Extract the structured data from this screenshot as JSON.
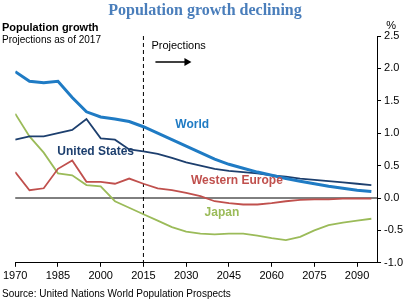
{
  "chart_data": {
    "type": "line",
    "title": "Population growth declining",
    "subtitle": [
      "Population growth",
      "Projections as of 2017"
    ],
    "y_label": "%",
    "source": "Source: United Nations World Population Prospects",
    "x": [
      1970,
      1975,
      1980,
      1985,
      1990,
      1995,
      2000,
      2005,
      2010,
      2015,
      2020,
      2025,
      2030,
      2035,
      2040,
      2045,
      2050,
      2055,
      2060,
      2065,
      2070,
      2075,
      2080,
      2085,
      2090,
      2095
    ],
    "series": [
      {
        "name": "World",
        "color": "#1f7bc4",
        "values": [
          1.95,
          1.8,
          1.78,
          1.8,
          1.55,
          1.33,
          1.25,
          1.22,
          1.18,
          1.1,
          1.0,
          0.9,
          0.8,
          0.7,
          0.6,
          0.52,
          0.46,
          0.4,
          0.35,
          0.3,
          0.26,
          0.22,
          0.18,
          0.15,
          0.12,
          0.1
        ]
      },
      {
        "name": "United States",
        "color": "#1d3f6e",
        "values": [
          0.9,
          0.95,
          0.95,
          1.0,
          1.05,
          1.22,
          0.92,
          0.9,
          0.75,
          0.72,
          0.68,
          0.62,
          0.55,
          0.5,
          0.45,
          0.42,
          0.4,
          0.38,
          0.35,
          0.33,
          0.3,
          0.28,
          0.26,
          0.24,
          0.22,
          0.2
        ]
      },
      {
        "name": "Western Europe",
        "color": "#c0504d",
        "values": [
          0.4,
          0.12,
          0.15,
          0.45,
          0.58,
          0.25,
          0.25,
          0.22,
          0.3,
          0.22,
          0.15,
          0.12,
          0.08,
          0.03,
          -0.05,
          -0.08,
          -0.1,
          -0.1,
          -0.08,
          -0.05,
          -0.03,
          -0.02,
          -0.02,
          -0.01,
          -0.01,
          -0.01
        ]
      },
      {
        "name": "Japan",
        "color": "#9bbb59",
        "values": [
          1.3,
          0.95,
          0.7,
          0.38,
          0.35,
          0.2,
          0.18,
          -0.05,
          -0.15,
          -0.25,
          -0.35,
          -0.45,
          -0.52,
          -0.55,
          -0.56,
          -0.55,
          -0.55,
          -0.58,
          -0.62,
          -0.65,
          -0.6,
          -0.5,
          -0.42,
          -0.38,
          -0.35,
          -0.32
        ]
      }
    ],
    "xlim": [
      1970,
      2097
    ],
    "xticks": [
      1970,
      1985,
      2000,
      2015,
      2030,
      2045,
      2060,
      2075,
      2090
    ],
    "ylim": [
      -1,
      2.5
    ],
    "yticks": [
      {
        "value": -1,
        "label": "-1.0"
      },
      {
        "value": -0.5,
        "label": "-0.5"
      },
      {
        "value": 0,
        "label": "0.0"
      },
      {
        "value": 0.5,
        "label": "0.5"
      },
      {
        "value": 1,
        "label": "1.0"
      },
      {
        "value": 1.5,
        "label": "1.5"
      },
      {
        "value": 2,
        "label": "2.0"
      },
      {
        "value": 2.5,
        "label": "2.5"
      }
    ],
    "grid": false,
    "annotations": [
      {
        "text": "Projections",
        "x": 2015
      }
    ]
  }
}
